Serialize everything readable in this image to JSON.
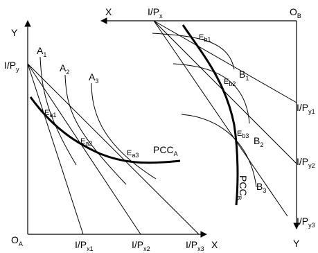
{
  "left_panel": {
    "origin": {
      "main": "O",
      "sub": "A"
    },
    "y_axis": {
      "main": "Y"
    },
    "x_axis": {
      "main": "X"
    },
    "budget_y_intercept": {
      "main": "I/P",
      "sub": "y"
    },
    "budget_x_intercepts": [
      {
        "main": "I/P",
        "sub": "x1"
      },
      {
        "main": "I/P",
        "sub": "x2"
      },
      {
        "main": "I/P",
        "sub": "x3"
      }
    ],
    "indifference_curves": [
      {
        "main": "A",
        "sub": "1"
      },
      {
        "main": "A",
        "sub": "2"
      },
      {
        "main": "A",
        "sub": "3"
      }
    ],
    "equilibria": [
      {
        "main": "E",
        "sub": "a1"
      },
      {
        "main": "E",
        "sub": "a2"
      },
      {
        "main": "E",
        "sub": "a3"
      }
    ],
    "pcc": {
      "main": "PCC",
      "sub": "A"
    }
  },
  "right_panel": {
    "origin": {
      "main": "O",
      "sub": "B"
    },
    "x_axis": {
      "main": "X"
    },
    "y_axis": {
      "main": "Y"
    },
    "budget_x_intercept": {
      "main": "I/P",
      "sub": "x"
    },
    "budget_y_intercepts": [
      {
        "main": "I/P",
        "sub": "y1"
      },
      {
        "main": "I/P",
        "sub": "y2"
      },
      {
        "main": "I/P",
        "sub": "y3"
      }
    ],
    "indifference_curves": [
      {
        "main": "B",
        "sub": "1"
      },
      {
        "main": "B",
        "sub": "2"
      },
      {
        "main": "B",
        "sub": "3"
      }
    ],
    "equilibria": [
      {
        "main": "E",
        "sub": "b1"
      },
      {
        "main": "E",
        "sub": "b2"
      },
      {
        "main": "E",
        "sub": "b3"
      }
    ],
    "pcc": {
      "main": "PCC",
      "sub": "B"
    }
  }
}
